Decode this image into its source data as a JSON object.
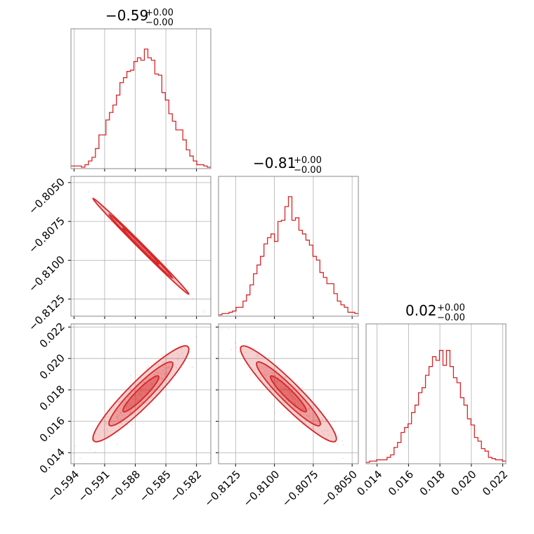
{
  "colors": {
    "accent": "#d62728",
    "grid": "#b0b0b0",
    "frame": "#888888"
  },
  "titles": [
    {
      "main": "−0.59",
      "sup": "+0.00",
      "sub": "−0.00"
    },
    {
      "main": "−0.81",
      "sup": "+0.00",
      "sub": "−0.00"
    },
    {
      "main": "0.02",
      "sup": "+0.00",
      "sub": "−0.00"
    }
  ],
  "chart_data": {
    "type": "corner",
    "parameters": [
      {
        "range": [
          -0.5943,
          -0.5806
        ],
        "ticks": [
          -0.594,
          -0.591,
          -0.588,
          -0.585,
          -0.582
        ],
        "tick_labels": [
          "−0.594",
          "−0.591",
          "−0.588",
          "−0.585",
          "−0.582"
        ],
        "hist_bins": [
          0.01,
          0.01,
          0.01,
          0.0,
          0.02,
          0.05,
          0.08,
          0.15,
          0.26,
          0.26,
          0.38,
          0.44,
          0.5,
          0.58,
          0.68,
          0.72,
          0.77,
          0.78,
          0.85,
          0.88,
          0.86,
          0.95,
          0.88,
          0.86,
          0.75,
          0.74,
          0.6,
          0.54,
          0.43,
          0.37,
          0.3,
          0.3,
          0.22,
          0.14,
          0.09,
          0.05,
          0.02,
          0.02,
          0.01,
          0.0
        ]
      },
      {
        "range": [
          -0.8136,
          -0.8046
        ],
        "ticks": [
          -0.8125,
          -0.81,
          -0.8075,
          -0.805
        ],
        "tick_labels": [
          "−0.8125",
          "−0.8100",
          "−0.8075",
          "−0.8050"
        ],
        "hist_bins": [
          0.0,
          0.01,
          0.01,
          0.02,
          0.03,
          0.06,
          0.06,
          0.11,
          0.16,
          0.24,
          0.33,
          0.4,
          0.47,
          0.57,
          0.62,
          0.65,
          0.59,
          0.75,
          0.76,
          0.87,
          0.95,
          0.76,
          0.78,
          0.68,
          0.65,
          0.6,
          0.56,
          0.47,
          0.44,
          0.34,
          0.3,
          0.25,
          0.25,
          0.17,
          0.11,
          0.08,
          0.06,
          0.02,
          0.02,
          0.01
        ]
      },
      {
        "range": [
          0.0133,
          0.0222
        ],
        "ticks": [
          0.014,
          0.016,
          0.018,
          0.02,
          0.022
        ],
        "tick_labels": [
          "0.014",
          "0.016",
          "0.018",
          "0.020",
          "0.022"
        ],
        "hist_bins": [
          0.0,
          0.01,
          0.01,
          0.02,
          0.02,
          0.02,
          0.04,
          0.06,
          0.12,
          0.16,
          0.24,
          0.28,
          0.31,
          0.4,
          0.46,
          0.56,
          0.6,
          0.7,
          0.77,
          0.85,
          0.82,
          0.9,
          0.78,
          0.9,
          0.77,
          0.68,
          0.64,
          0.52,
          0.46,
          0.35,
          0.3,
          0.2,
          0.17,
          0.11,
          0.09,
          0.04,
          0.03,
          0.02,
          0.02,
          0.01
        ]
      }
    ],
    "correlations": [
      [
        1,
        -0.997,
        0.93
      ],
      [
        -0.997,
        1,
        -0.94
      ],
      [
        0.93,
        -0.94,
        1
      ]
    ],
    "color": "#d62728",
    "grid": true
  }
}
